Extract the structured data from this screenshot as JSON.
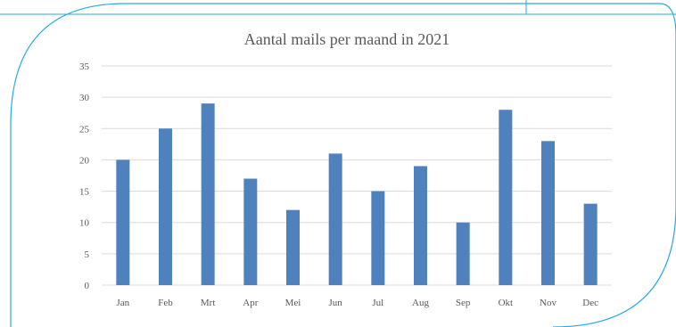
{
  "chart_data": {
    "type": "bar",
    "title": "Aantal mails per maand in 2021",
    "xlabel": "",
    "ylabel": "",
    "categories": [
      "Jan",
      "Feb",
      "Mrt",
      "Apr",
      "Mei",
      "Jun",
      "Jul",
      "Aug",
      "Sep",
      "Okt",
      "Nov",
      "Dec"
    ],
    "values": [
      20,
      25,
      29,
      17,
      12,
      21,
      15,
      19,
      10,
      28,
      23,
      13
    ],
    "ylim": [
      0,
      35
    ],
    "yticks": [
      0,
      5,
      10,
      15,
      20,
      25,
      30,
      35
    ],
    "grid": true,
    "legend": "none",
    "bar_color": "#4f81bd"
  },
  "colors": {
    "frame_line": "#29a9e1",
    "gridline": "#d9d9d9",
    "text": "#595959"
  }
}
